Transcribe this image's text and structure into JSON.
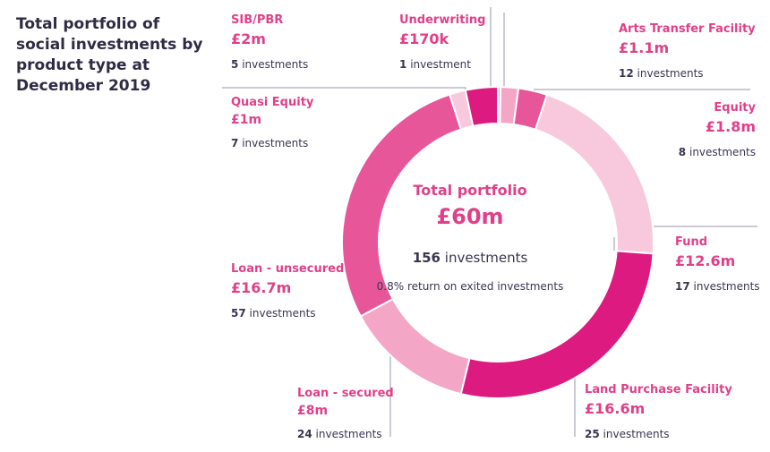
{
  "chart_data": {
    "type": "pie",
    "title": "Total portfolio of social investments by product type at December 2019",
    "center": {
      "title": "Total portfolio",
      "amount": "£60m",
      "count_number": "156",
      "count_label": "investments",
      "return_text": "0.8% return on exited investments"
    },
    "slices": [
      {
        "name": "Underwriting",
        "amount": "£170k",
        "value": 0.17,
        "count": "1",
        "count_label": "investment",
        "color": "#f4a6c6"
      },
      {
        "name": "Arts Transfer Facility",
        "amount": "£1.1m",
        "value": 1.1,
        "count": "12",
        "count_label": "investments",
        "color": "#f4a6c6"
      },
      {
        "name": "Equity",
        "amount": "£1.8m",
        "value": 1.8,
        "count": "8",
        "count_label": "investments",
        "color": "#e8569a"
      },
      {
        "name": "Fund",
        "amount": "£12.6m",
        "value": 12.6,
        "count": "17",
        "count_label": "investments",
        "color": "#f8c9dc"
      },
      {
        "name": "Land Purchase Facility",
        "amount": "£16.6m",
        "value": 16.6,
        "count": "25",
        "count_label": "investments",
        "color": "#dc1a80"
      },
      {
        "name": "Loan - secured",
        "amount": "£8m",
        "value": 8.0,
        "count": "24",
        "count_label": "investments",
        "color": "#f4a6c6"
      },
      {
        "name": "Loan - unsecured",
        "amount": "£16.7m",
        "value": 16.7,
        "count": "57",
        "count_label": "investments",
        "color": "#e8569a"
      },
      {
        "name": "Quasi Equity",
        "amount": "£1m",
        "value": 1.0,
        "count": "7",
        "count_label": "investments",
        "color": "#f8c9dc"
      },
      {
        "name": "SIB/PBR",
        "amount": "£2m",
        "value": 2.0,
        "count": "5",
        "count_label": "investments",
        "color": "#dc1a80"
      }
    ],
    "legend": "labels-around-ring"
  }
}
